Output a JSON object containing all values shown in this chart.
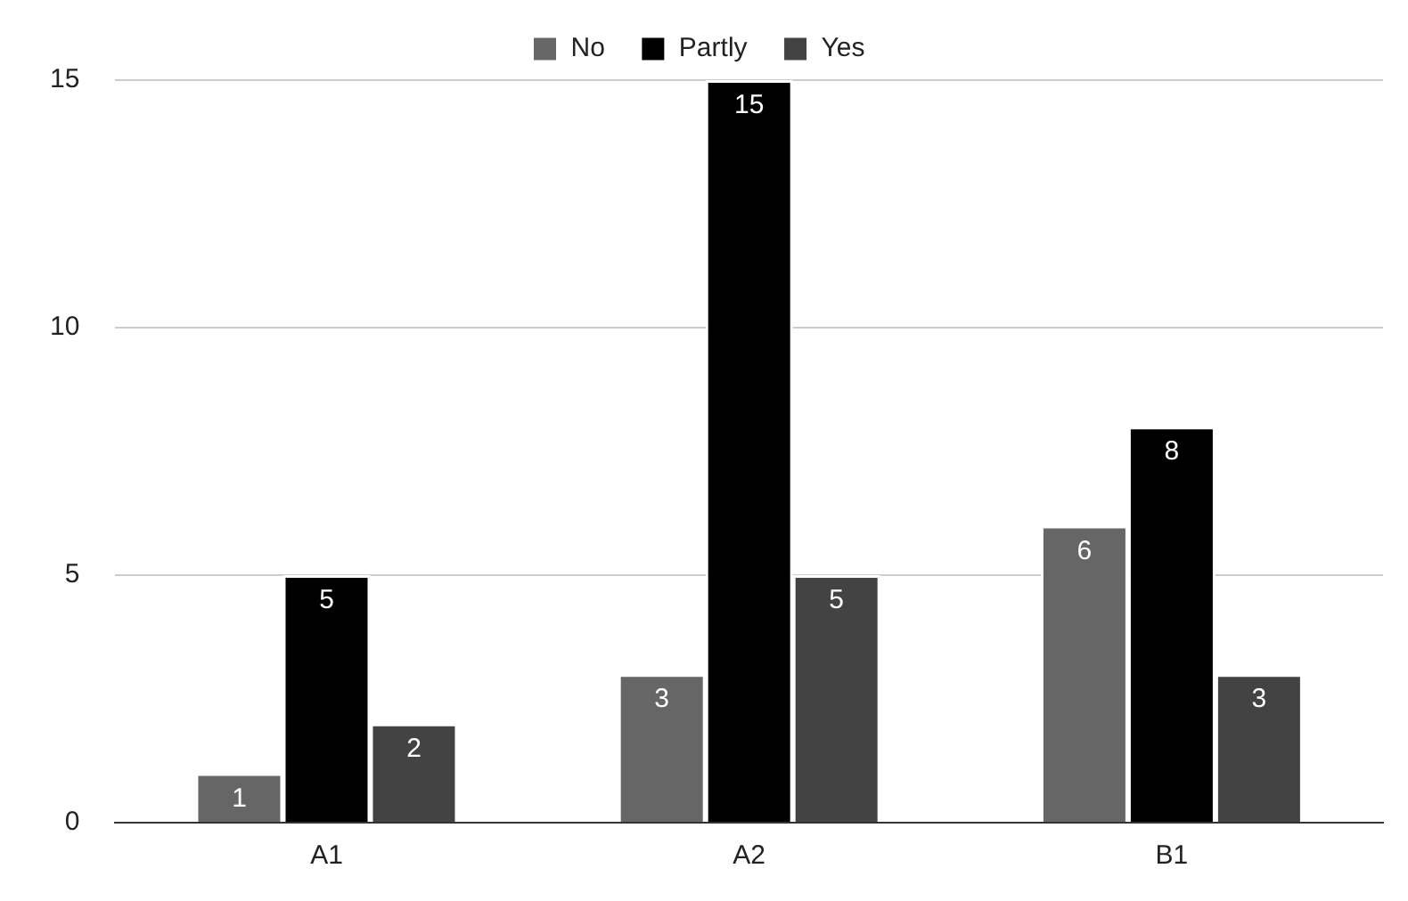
{
  "chart_data": {
    "type": "bar",
    "categories": [
      "A1",
      "A2",
      "B1"
    ],
    "series": [
      {
        "name": "No",
        "color": "#666666",
        "values": [
          1,
          3,
          6
        ]
      },
      {
        "name": "Partly",
        "color": "#000000",
        "values": [
          5,
          15,
          8
        ]
      },
      {
        "name": "Yes",
        "color": "#434343",
        "values": [
          2,
          5,
          3
        ]
      }
    ],
    "ylim": [
      0,
      15
    ],
    "yticks": [
      0,
      5,
      10,
      15
    ],
    "grid": "y",
    "legend": "top",
    "data_labels": true
  }
}
